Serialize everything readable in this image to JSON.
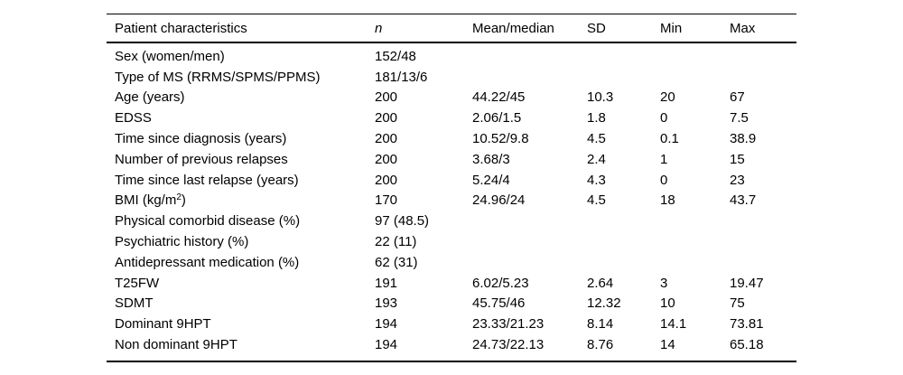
{
  "table": {
    "name": "patient-characteristics-table",
    "columns": [
      "Patient characteristics",
      "n",
      "Mean/median",
      "SD",
      "Min",
      "Max"
    ],
    "rows": [
      [
        "Sex (women/men)",
        "152/48",
        "",
        "",
        "",
        ""
      ],
      [
        "Type of MS (RRMS/SPMS/PPMS)",
        "181/13/6",
        "",
        "",
        "",
        ""
      ],
      [
        "Age (years)",
        "200",
        "44.22/45",
        "10.3",
        "20",
        "67"
      ],
      [
        "EDSS",
        "200",
        "2.06/1.5",
        "1.8",
        "0",
        "7.5"
      ],
      [
        "Time since diagnosis (years)",
        "200",
        "10.52/9.8",
        "4.5",
        "0.1",
        "38.9"
      ],
      [
        "Number of previous relapses",
        "200",
        "3.68/3",
        "2.4",
        "1",
        "15"
      ],
      [
        "Time since last relapse (years)",
        "200",
        "5.24/4",
        "4.3",
        "0",
        "23"
      ],
      [
        "BMI (kg/m²)",
        "170",
        "24.96/24",
        "4.5",
        "18",
        "43.7"
      ],
      [
        "Physical comorbid disease (%)",
        "97 (48.5)",
        "",
        "",
        "",
        ""
      ],
      [
        "Psychiatric history (%)",
        "22 (11)",
        "",
        "",
        "",
        ""
      ],
      [
        "Antidepressant medication (%)",
        "62 (31)",
        "",
        "",
        "",
        ""
      ],
      [
        "T25FW",
        "191",
        "6.02/5.23",
        "2.64",
        "3",
        "19.47"
      ],
      [
        "SDMT",
        "193",
        "45.75/46",
        "12.32",
        "10",
        "75"
      ],
      [
        "Dominant 9HPT",
        "194",
        "23.33/21.23",
        "8.14",
        "14.1",
        "73.81"
      ],
      [
        "Non dominant 9HPT",
        "194",
        "24.73/22.13",
        "8.76",
        "14",
        "65.18"
      ]
    ],
    "colors": {
      "text": "#000000",
      "rules": "#000000",
      "background": "#ffffff"
    }
  }
}
